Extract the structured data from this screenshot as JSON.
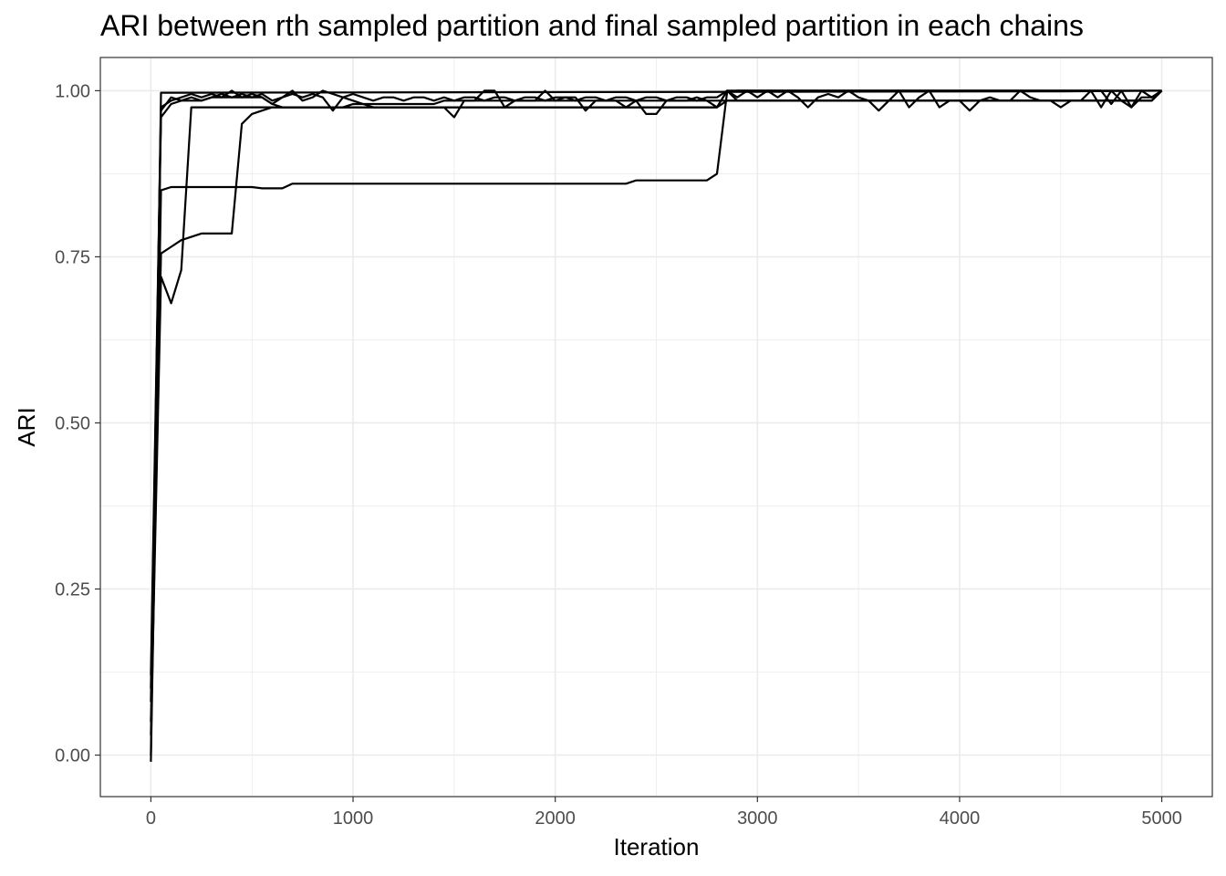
{
  "chart_data": {
    "type": "line",
    "title": "ARI between rth sampled partition and final sampled partition in each chains",
    "xlabel": "Iteration",
    "ylabel": "ARI",
    "xlim": [
      -250,
      5250
    ],
    "ylim": [
      -0.0625,
      1.05
    ],
    "x_ticks": [
      0,
      1000,
      2000,
      3000,
      4000,
      5000
    ],
    "x_tick_labels": [
      "0",
      "1000",
      "2000",
      "3000",
      "4000",
      "5000"
    ],
    "y_ticks": [
      0,
      0.25,
      0.5,
      0.75,
      1
    ],
    "y_tick_labels": [
      "0.00",
      "0.25",
      "0.50",
      "0.75",
      "1.00"
    ],
    "grid": true,
    "legend": "none",
    "line_color": "#000000",
    "series": [
      {
        "x": [
          0,
          50,
          100,
          4500,
          5000
        ],
        "y": [
          0.0,
          0.997,
          0.997,
          0.999,
          1.0
        ]
      },
      {
        "x": [
          0,
          50,
          100,
          150,
          200,
          250,
          300,
          350,
          400,
          450,
          500,
          550,
          600,
          650,
          700,
          750,
          800,
          850,
          900,
          950,
          1000,
          1050,
          1100,
          1150,
          1200,
          1250,
          1300,
          1350,
          1400,
          1450,
          1500,
          1550,
          1600,
          1650,
          1700,
          1750,
          1800,
          1850,
          1900,
          1950,
          2000,
          2050,
          2100,
          2150,
          2200,
          2250,
          2300,
          2350,
          2400,
          2450,
          2500,
          2550,
          2600,
          2650,
          2700,
          2750,
          2800,
          2850,
          2900,
          4700,
          4750,
          4800,
          4850,
          4900,
          4950,
          5000
        ],
        "y": [
          0.08,
          0.97,
          0.99,
          0.985,
          0.99,
          0.985,
          0.99,
          0.995,
          0.99,
          0.995,
          0.99,
          0.995,
          0.985,
          0.99,
          1.0,
          0.985,
          0.99,
          1.0,
          0.995,
          0.99,
          0.995,
          0.99,
          0.985,
          0.99,
          0.99,
          0.985,
          0.99,
          0.99,
          0.985,
          0.99,
          0.985,
          0.99,
          0.99,
          0.985,
          0.99,
          0.99,
          0.985,
          0.99,
          0.99,
          0.985,
          0.99,
          0.99,
          0.985,
          0.99,
          0.99,
          0.985,
          0.99,
          0.99,
          0.985,
          0.99,
          0.99,
          0.985,
          0.99,
          0.99,
          0.985,
          0.99,
          0.99,
          1.0,
          1.0,
          1.0,
          0.98,
          1.0,
          0.975,
          0.99,
          0.99,
          1.0
        ]
      },
      {
        "x": [
          0,
          50,
          100,
          150,
          200,
          250,
          300,
          350,
          400,
          450,
          500,
          550,
          600,
          650,
          700,
          750,
          800,
          850,
          900,
          950,
          1000,
          1050,
          1100,
          1150,
          1200,
          1250,
          1300,
          1350,
          1400,
          1450,
          1500,
          1550,
          1600,
          1650,
          1700,
          1750,
          1800,
          1850,
          1900,
          1950,
          2000,
          2050,
          2100,
          2150,
          2200,
          2250,
          2300,
          2350,
          2400,
          2450,
          2500,
          2550,
          2600,
          2650,
          2700,
          2750,
          2800,
          2850,
          2900,
          3000,
          3050,
          3100,
          3150,
          3200,
          3250,
          3300,
          3350,
          3400,
          3450,
          3500,
          3550,
          3600,
          3650,
          3700,
          3750,
          3800,
          3850,
          3900,
          3950,
          4000,
          4050,
          4100,
          4150,
          4200,
          4250,
          4300,
          4350,
          4400,
          4450,
          4500,
          4550,
          4600,
          4650,
          4700,
          4750,
          4800,
          4850,
          4900,
          4950,
          5000
        ],
        "y": [
          0.1,
          0.96,
          0.98,
          0.985,
          0.985,
          0.985,
          0.99,
          0.99,
          0.99,
          0.99,
          0.99,
          0.99,
          0.98,
          0.975,
          0.975,
          0.975,
          0.975,
          0.975,
          0.975,
          0.975,
          0.98,
          0.98,
          0.98,
          0.98,
          0.98,
          0.98,
          0.98,
          0.98,
          0.98,
          0.985,
          0.985,
          0.985,
          0.985,
          0.985,
          0.985,
          0.985,
          0.985,
          0.985,
          0.985,
          0.985,
          0.985,
          0.985,
          0.985,
          0.985,
          0.985,
          0.985,
          0.985,
          0.985,
          0.985,
          0.985,
          0.985,
          0.985,
          0.985,
          0.985,
          0.99,
          0.985,
          0.975,
          1.0,
          0.985,
          0.985,
          0.985,
          0.985,
          0.985,
          0.985,
          0.985,
          0.985,
          0.985,
          0.985,
          0.985,
          0.985,
          0.985,
          0.985,
          0.985,
          0.985,
          0.985,
          0.985,
          0.985,
          0.985,
          0.985,
          0.985,
          0.985,
          0.985,
          0.985,
          0.985,
          0.985,
          0.985,
          0.985,
          0.985,
          0.985,
          0.985,
          0.985,
          0.985,
          0.985,
          0.985,
          0.985,
          0.985,
          0.985,
          0.985,
          0.985,
          1.0
        ]
      },
      {
        "x": [
          0,
          50,
          100,
          150,
          200,
          250,
          300,
          350,
          400,
          450,
          500,
          550,
          600,
          650,
          700,
          750,
          800,
          850,
          900,
          950,
          1000,
          1050,
          1100,
          1150,
          1200,
          1250,
          1300,
          1350,
          1400,
          1450,
          1500,
          1550,
          1600,
          1650,
          1700,
          1750,
          1800,
          1850,
          1900,
          1950,
          2000,
          2050,
          2100,
          2150,
          2200,
          2250,
          2300,
          2350,
          2400,
          2450,
          2500,
          2550,
          2600,
          2650,
          2700,
          2750,
          2800,
          2850,
          2900,
          4950,
          5000
        ],
        "y": [
          0.12,
          0.975,
          0.985,
          0.99,
          0.995,
          0.99,
          0.995,
          0.99,
          1.0,
          0.99,
          0.995,
          0.99,
          0.98,
          0.99,
          0.995,
          0.99,
          0.995,
          0.99,
          0.97,
          0.99,
          0.985,
          0.98,
          0.975,
          0.975,
          0.975,
          0.975,
          0.975,
          0.975,
          0.975,
          0.975,
          0.96,
          0.985,
          0.985,
          1.0,
          1.0,
          0.975,
          0.985,
          0.985,
          0.985,
          1.0,
          0.985,
          0.99,
          0.99,
          0.97,
          0.985,
          0.985,
          0.985,
          0.975,
          0.985,
          0.965,
          0.965,
          0.985,
          0.985,
          0.985,
          0.985,
          0.985,
          0.985,
          0.985,
          0.985,
          0.985,
          1.0
        ]
      },
      {
        "x": [
          0,
          50,
          100,
          150,
          200,
          250,
          300,
          350,
          400,
          450,
          500,
          550,
          600,
          650,
          700,
          750,
          800,
          850,
          900,
          950,
          1000,
          1050,
          1100,
          1150,
          1200,
          1250,
          1300,
          1350,
          1400,
          1450,
          1500,
          1550,
          1600,
          1650,
          1700,
          1750,
          1800,
          1850,
          1900,
          1950,
          2000,
          2050,
          2100,
          2150,
          2200,
          2250,
          2300,
          2350,
          2400,
          2450,
          2500,
          2550,
          2600,
          2650,
          2700,
          2750,
          2800,
          2850,
          2900,
          2950,
          3000,
          3050,
          3100,
          3150,
          3200,
          3250,
          3300,
          3350,
          3400,
          3450,
          3500,
          3550,
          3600,
          3650,
          3700,
          3750,
          3800,
          3850,
          3900,
          3950,
          4000,
          4050,
          4100,
          4150,
          4200,
          4250,
          4300,
          4350,
          4400,
          4450,
          4500,
          4550,
          4600,
          4650,
          4700,
          4750,
          4800,
          4850,
          4900,
          4950,
          5000
        ],
        "y": [
          0.03,
          0.72,
          0.68,
          0.73,
          0.975,
          0.975,
          0.975,
          0.975,
          0.975,
          0.975,
          0.975,
          0.975,
          0.975,
          0.975,
          0.975,
          0.975,
          0.975,
          0.975,
          0.975,
          0.975,
          0.975,
          0.975,
          0.975,
          0.975,
          0.975,
          0.975,
          0.975,
          0.975,
          0.975,
          0.975,
          0.975,
          0.975,
          0.975,
          0.975,
          0.975,
          0.975,
          0.975,
          0.975,
          0.975,
          0.975,
          0.975,
          0.975,
          0.975,
          0.975,
          0.975,
          0.975,
          0.975,
          0.975,
          0.975,
          0.975,
          0.975,
          0.975,
          0.975,
          0.975,
          0.975,
          0.975,
          0.975,
          1.0,
          0.99,
          1.0,
          0.99,
          1.0,
          0.99,
          1.0,
          0.99,
          0.975,
          0.99,
          0.995,
          0.99,
          1.0,
          0.99,
          0.985,
          0.97,
          0.985,
          1.0,
          0.975,
          0.99,
          1.0,
          0.975,
          0.985,
          0.985,
          0.97,
          0.985,
          0.99,
          0.985,
          0.985,
          1.0,
          0.99,
          0.985,
          0.985,
          0.975,
          0.985,
          0.985,
          1.0,
          0.975,
          1.0,
          0.985,
          0.975,
          1.0,
          0.99,
          1.0
        ]
      },
      {
        "x": [
          0,
          50,
          100,
          150,
          200,
          250,
          300,
          350,
          400,
          450,
          500,
          550,
          600,
          650,
          700,
          750,
          800,
          850,
          900,
          950,
          1000,
          1050,
          1100,
          1150,
          1200,
          1250,
          1300,
          1350,
          1400,
          1450,
          1500,
          1550,
          1600,
          1650,
          1700,
          1750,
          1800,
          1850,
          1900,
          1950,
          2000,
          2050,
          2100,
          2150,
          2200,
          2250,
          2300,
          2350,
          2400,
          2450,
          2500,
          2550,
          2600,
          2650,
          2700,
          2750,
          2800,
          2850,
          2900,
          4950,
          5000
        ],
        "y": [
          0.05,
          0.755,
          0.765,
          0.775,
          0.78,
          0.785,
          0.785,
          0.785,
          0.785,
          0.95,
          0.965,
          0.97,
          0.975,
          0.975,
          0.975,
          0.975,
          0.975,
          0.975,
          0.975,
          0.975,
          0.975,
          0.975,
          0.975,
          0.975,
          0.975,
          0.975,
          0.975,
          0.975,
          0.975,
          0.975,
          0.975,
          0.975,
          0.975,
          0.975,
          0.975,
          0.975,
          0.975,
          0.975,
          0.975,
          0.975,
          0.975,
          0.975,
          0.975,
          0.975,
          0.975,
          0.975,
          0.975,
          0.975,
          0.975,
          0.975,
          0.975,
          0.975,
          0.975,
          0.975,
          0.975,
          0.975,
          0.975,
          0.985,
          0.985,
          0.985,
          1.0
        ]
      },
      {
        "x": [
          0,
          50,
          100,
          150,
          200,
          250,
          300,
          350,
          400,
          450,
          500,
          550,
          600,
          650,
          700,
          750,
          800,
          850,
          900,
          950,
          1000,
          1050,
          1100,
          1150,
          1200,
          1250,
          1300,
          1350,
          1400,
          1450,
          1500,
          1550,
          1600,
          1650,
          1700,
          1750,
          1800,
          1850,
          1900,
          1950,
          2000,
          2050,
          2100,
          2150,
          2200,
          2250,
          2300,
          2350,
          2400,
          2450,
          2500,
          2550,
          2600,
          2650,
          2700,
          2750,
          2800,
          2850,
          2900,
          4950,
          5000
        ],
        "y": [
          -0.01,
          0.85,
          0.855,
          0.855,
          0.855,
          0.855,
          0.855,
          0.855,
          0.855,
          0.855,
          0.855,
          0.853,
          0.853,
          0.853,
          0.86,
          0.86,
          0.86,
          0.86,
          0.86,
          0.86,
          0.86,
          0.86,
          0.86,
          0.86,
          0.86,
          0.86,
          0.86,
          0.86,
          0.86,
          0.86,
          0.86,
          0.86,
          0.86,
          0.86,
          0.86,
          0.86,
          0.86,
          0.86,
          0.86,
          0.86,
          0.86,
          0.86,
          0.86,
          0.86,
          0.86,
          0.86,
          0.86,
          0.86,
          0.865,
          0.865,
          0.865,
          0.865,
          0.865,
          0.865,
          0.865,
          0.865,
          0.875,
          0.998,
          1.0,
          1.0,
          1.0
        ]
      }
    ]
  }
}
